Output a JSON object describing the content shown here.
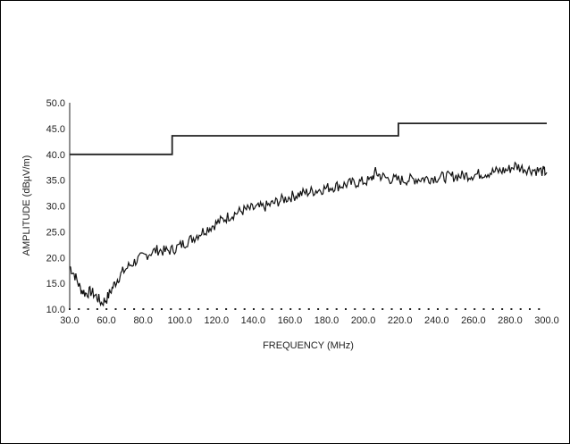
{
  "chart_data": {
    "type": "line",
    "title": "",
    "xlabel": "FREQUENCY (MHz)",
    "ylabel": "AMPLITUDE (dBµV/m)",
    "xlim": [
      30,
      300
    ],
    "ylim": [
      10,
      50
    ],
    "x_ticks": [
      "30.0",
      "60.0",
      "80.0",
      "100.0",
      "120.0",
      "140.0",
      "160.0",
      "180.0",
      "200.0",
      "220.0",
      "240.0",
      "260.0",
      "280.0",
      "300.0"
    ],
    "y_ticks": [
      "10.0",
      "15.0",
      "20.0",
      "25.0",
      "30.0",
      "35.0",
      "40.0",
      "45.0",
      "50.0"
    ],
    "grid": false,
    "series": [
      {
        "role": "limit",
        "color": "#222222",
        "points": [
          [
            30,
            40
          ],
          [
            88,
            40
          ],
          [
            88,
            43.6
          ],
          [
            216,
            43.6
          ],
          [
            216,
            46
          ],
          [
            300,
            46
          ]
        ]
      },
      {
        "role": "measurement",
        "color": "#111111",
        "points": [
          [
            30,
            18.3
          ],
          [
            33,
            16.5
          ],
          [
            36,
            14
          ],
          [
            39,
            13
          ],
          [
            42,
            13.4
          ],
          [
            45,
            12.5
          ],
          [
            48,
            11.2
          ],
          [
            51,
            12
          ],
          [
            54,
            14
          ],
          [
            57,
            15.8
          ],
          [
            60,
            17.2
          ],
          [
            64,
            18.5
          ],
          [
            68,
            19.5
          ],
          [
            72,
            20.2
          ],
          [
            76,
            21
          ],
          [
            80,
            21.5
          ],
          [
            84,
            21.2
          ],
          [
            88,
            21.5
          ],
          [
            92,
            22.2
          ],
          [
            96,
            23
          ],
          [
            100,
            23.8
          ],
          [
            104,
            24.8
          ],
          [
            108,
            25.6
          ],
          [
            112,
            26.4
          ],
          [
            116,
            27.2
          ],
          [
            120,
            28
          ],
          [
            124,
            28.6
          ],
          [
            128,
            29.1
          ],
          [
            132,
            29.4
          ],
          [
            136,
            29.6
          ],
          [
            140,
            29.8
          ],
          [
            144,
            30.3
          ],
          [
            148,
            30.9
          ],
          [
            152,
            31.4
          ],
          [
            156,
            31.9
          ],
          [
            160,
            32.3
          ],
          [
            164,
            32.6
          ],
          [
            168,
            32.9
          ],
          [
            172,
            33.2
          ],
          [
            176,
            33.5
          ],
          [
            180,
            33.8
          ],
          [
            184,
            34
          ],
          [
            188,
            34.3
          ],
          [
            192,
            34.5
          ],
          [
            196,
            34.7
          ],
          [
            200,
            34.9
          ],
          [
            203,
            36.5
          ],
          [
            206,
            35.8
          ],
          [
            210,
            35.3
          ],
          [
            214,
            35.1
          ],
          [
            218,
            35
          ],
          [
            222,
            35.1
          ],
          [
            226,
            35.2
          ],
          [
            230,
            35.3
          ],
          [
            234,
            35.4
          ],
          [
            238,
            35.5
          ],
          [
            242,
            35.6
          ],
          [
            246,
            35.7
          ],
          [
            250,
            35.8
          ],
          [
            254,
            35.9
          ],
          [
            258,
            36
          ],
          [
            262,
            36.2
          ],
          [
            266,
            36.4
          ],
          [
            270,
            36.6
          ],
          [
            274,
            36.8
          ],
          [
            278,
            37
          ],
          [
            282,
            37.8
          ],
          [
            286,
            37.3
          ],
          [
            290,
            37.1
          ],
          [
            294,
            36.9
          ],
          [
            298,
            36.7
          ],
          [
            300,
            36.5
          ]
        ]
      }
    ]
  }
}
